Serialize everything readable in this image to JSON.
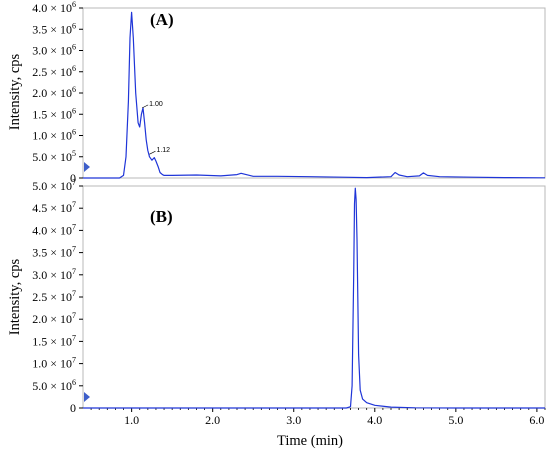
{
  "chart_data": [
    {
      "type": "line",
      "panel_label": "(A)",
      "ylabel": "Intensity, cps",
      "xlabel": "",
      "xlim": [
        0.4,
        6.1
      ],
      "ylim": [
        0,
        4000000
      ],
      "y_ticks": [
        {
          "value": 0,
          "mant": "0",
          "exp": ""
        },
        {
          "value": 500000,
          "mant": "5.0 × 10",
          "exp": "5"
        },
        {
          "value": 1000000,
          "mant": "1.0 × 10",
          "exp": "6"
        },
        {
          "value": 1500000,
          "mant": "1.5 × 10",
          "exp": "6"
        },
        {
          "value": 2000000,
          "mant": "2.0 × 10",
          "exp": "6"
        },
        {
          "value": 2500000,
          "mant": "2.5 × 10",
          "exp": "6"
        },
        {
          "value": 3000000,
          "mant": "3.0 × 10",
          "exp": "6"
        },
        {
          "value": 3500000,
          "mant": "3.5 × 10",
          "exp": "6"
        },
        {
          "value": 4000000,
          "mant": "4.0 × 10",
          "exp": "6"
        }
      ],
      "x_ticks": [
        1.0,
        2.0,
        3.0,
        4.0,
        5.0,
        6.0
      ],
      "series": [
        {
          "color": "#1f35d8",
          "x": [
            0.4,
            0.75,
            0.85,
            0.9,
            0.93,
            0.96,
            0.98,
            1.0,
            1.02,
            1.05,
            1.08,
            1.1,
            1.12,
            1.14,
            1.16,
            1.18,
            1.2,
            1.22,
            1.25,
            1.28,
            1.3,
            1.33,
            1.35,
            1.38,
            1.4,
            1.5,
            1.8,
            2.1,
            2.3,
            2.35,
            2.5,
            2.8,
            3.2,
            3.6,
            3.9,
            4.2,
            4.25,
            4.3,
            4.4,
            4.55,
            4.6,
            4.65,
            4.8,
            5.2,
            5.6,
            6.1
          ],
          "y": [
            0,
            0,
            0,
            60000,
            500000,
            1800000,
            3300000,
            3900000,
            3300000,
            2000000,
            1300000,
            1200000,
            1500000,
            1650000,
            1300000,
            900000,
            650000,
            500000,
            420000,
            480000,
            400000,
            250000,
            130000,
            80000,
            60000,
            60000,
            70000,
            50000,
            80000,
            110000,
            40000,
            40000,
            30000,
            20000,
            10000,
            30000,
            130000,
            70000,
            30000,
            50000,
            120000,
            60000,
            30000,
            20000,
            10000,
            5000
          ]
        }
      ],
      "annotations": [
        {
          "x": 1.13,
          "y": 1650000,
          "text": "1.00"
        },
        {
          "x": 1.22,
          "y": 560000,
          "text": "1.12"
        }
      ]
    },
    {
      "type": "line",
      "panel_label": "(B)",
      "ylabel": "Intensity, cps",
      "xlabel": "Time (min)",
      "xlim": [
        0.4,
        6.1
      ],
      "ylim": [
        0,
        50000000
      ],
      "y_ticks": [
        {
          "value": 0,
          "mant": "0",
          "exp": ""
        },
        {
          "value": 5000000,
          "mant": "5.0 × 10",
          "exp": "6"
        },
        {
          "value": 10000000,
          "mant": "1.0 × 10",
          "exp": "7"
        },
        {
          "value": 15000000,
          "mant": "1.5 × 10",
          "exp": "7"
        },
        {
          "value": 20000000,
          "mant": "2.0 × 10",
          "exp": "7"
        },
        {
          "value": 25000000,
          "mant": "2.5 × 10",
          "exp": "7"
        },
        {
          "value": 30000000,
          "mant": "3.0 × 10",
          "exp": "7"
        },
        {
          "value": 35000000,
          "mant": "3.5 × 10",
          "exp": "7"
        },
        {
          "value": 40000000,
          "mant": "4.0 × 10",
          "exp": "7"
        },
        {
          "value": 45000000,
          "mant": "4.5 × 10",
          "exp": "7"
        },
        {
          "value": 50000000,
          "mant": "5.0 × 10",
          "exp": "7"
        }
      ],
      "x_ticks": [
        1.0,
        2.0,
        3.0,
        4.0,
        5.0,
        6.0
      ],
      "x_tick_labels": [
        "1.0",
        "2.0",
        "3.0",
        "4.0",
        "5.0",
        "6.0"
      ],
      "series": [
        {
          "color": "#1f35d8",
          "x": [
            0.4,
            3.65,
            3.7,
            3.72,
            3.74,
            3.75,
            3.76,
            3.77,
            3.78,
            3.8,
            3.82,
            3.85,
            3.9,
            4.0,
            4.2,
            4.5,
            5.0,
            6.1
          ],
          "y": [
            0,
            0,
            300000,
            5000000,
            30000000,
            46000000,
            49500000,
            47000000,
            38000000,
            12000000,
            4000000,
            2000000,
            1200000,
            600000,
            200000,
            50000,
            0,
            0
          ]
        }
      ]
    }
  ]
}
